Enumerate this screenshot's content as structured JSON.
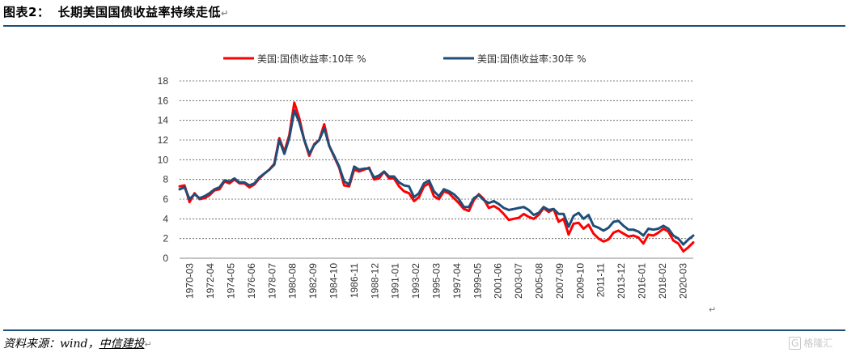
{
  "header": {
    "fig_label": "图表2：",
    "title": "长期美国国债收益率持续走低"
  },
  "footer": {
    "source_prefix": "资料来源：wind，",
    "source_org": "中信建投"
  },
  "watermark": {
    "icon_glyph": "G",
    "text": "格隆汇"
  },
  "return_glyph": "↵",
  "chart_data": {
    "type": "line",
    "title": "",
    "xlabel": "",
    "ylabel": "",
    "ylim": [
      0,
      18
    ],
    "yticks": [
      0,
      2,
      4,
      6,
      8,
      10,
      12,
      14,
      16,
      18
    ],
    "grid": true,
    "grid_style": "dashed-horizontal",
    "legend_position": "top-center",
    "x_tick_labels": [
      "1970-03",
      "1972-04",
      "1974-05",
      "1976-06",
      "1978-07",
      "1980-08",
      "1982-09",
      "1984-10",
      "1986-11",
      "1988-12",
      "1991-01",
      "1993-02",
      "1995-03",
      "1997-04",
      "1999-05",
      "2001-06",
      "2003-07",
      "2005-08",
      "2007-09",
      "2009-10",
      "2011-11",
      "2013-12",
      "2016-01",
      "2018-02",
      "2020-03"
    ],
    "x": [
      1970.0,
      1970.5,
      1971.0,
      1971.5,
      1972.0,
      1972.5,
      1973.0,
      1973.5,
      1974.0,
      1974.5,
      1975.0,
      1975.5,
      1976.0,
      1976.5,
      1977.0,
      1977.5,
      1978.0,
      1978.5,
      1979.0,
      1979.5,
      1980.0,
      1980.5,
      1981.0,
      1981.5,
      1982.0,
      1982.5,
      1983.0,
      1983.5,
      1984.0,
      1984.5,
      1985.0,
      1985.5,
      1986.0,
      1986.5,
      1987.0,
      1987.5,
      1988.0,
      1988.5,
      1989.0,
      1989.5,
      1990.0,
      1990.5,
      1991.0,
      1991.5,
      1992.0,
      1992.5,
      1993.0,
      1993.5,
      1994.0,
      1994.5,
      1995.0,
      1995.5,
      1996.0,
      1996.5,
      1997.0,
      1997.5,
      1998.0,
      1998.5,
      1999.0,
      1999.5,
      2000.0,
      2000.5,
      2001.0,
      2001.5,
      2002.0,
      2002.5,
      2003.0,
      2003.5,
      2004.0,
      2004.5,
      2005.0,
      2005.5,
      2006.0,
      2006.5,
      2007.0,
      2007.5,
      2008.0,
      2008.5,
      2009.0,
      2009.5,
      2010.0,
      2010.5,
      2011.0,
      2011.5,
      2012.0,
      2012.5,
      2013.0,
      2013.5,
      2014.0,
      2014.5,
      2015.0,
      2015.5,
      2016.0,
      2016.5,
      2017.0,
      2017.5,
      2018.0,
      2018.5,
      2019.0,
      2019.5,
      2020.0,
      2020.5,
      2021.0,
      2021.5
    ],
    "series": [
      {
        "name": "美国:国债收益率:10年 %",
        "color": "#ff0000",
        "values": [
          7.3,
          7.4,
          5.7,
          6.6,
          6.0,
          6.1,
          6.4,
          6.9,
          7.0,
          7.8,
          7.6,
          8.0,
          7.6,
          7.6,
          7.2,
          7.5,
          8.1,
          8.6,
          9.0,
          9.6,
          12.2,
          10.8,
          12.5,
          15.8,
          14.2,
          12.0,
          10.4,
          11.6,
          12.0,
          13.6,
          11.4,
          10.3,
          9.2,
          7.4,
          7.3,
          9.0,
          8.8,
          9.0,
          9.2,
          8.0,
          8.1,
          8.8,
          8.1,
          8.1,
          7.3,
          6.8,
          6.6,
          5.8,
          6.2,
          7.3,
          7.6,
          6.3,
          6.0,
          6.8,
          6.6,
          6.1,
          5.6,
          5.0,
          4.8,
          5.9,
          6.5,
          6.0,
          5.1,
          5.3,
          5.0,
          4.5,
          3.9,
          4.0,
          4.1,
          4.5,
          4.2,
          4.0,
          4.4,
          5.1,
          4.7,
          5.0,
          3.7,
          4.0,
          2.4,
          3.5,
          3.6,
          3.0,
          3.4,
          2.5,
          2.0,
          1.7,
          1.9,
          2.6,
          2.8,
          2.5,
          2.2,
          2.3,
          2.1,
          1.5,
          2.4,
          2.3,
          2.6,
          3.0,
          2.7,
          1.8,
          1.5,
          0.7,
          1.1,
          1.6
        ]
      },
      {
        "name": "美国:国债收益率:30年 %",
        "color": "#1f4e79",
        "values": [
          7.0,
          7.2,
          6.0,
          6.5,
          6.1,
          6.3,
          6.6,
          7.0,
          7.2,
          7.9,
          7.8,
          8.1,
          7.7,
          7.7,
          7.4,
          7.6,
          8.2,
          8.6,
          9.0,
          9.5,
          12.0,
          10.6,
          12.2,
          15.0,
          13.8,
          12.0,
          10.6,
          11.5,
          12.0,
          13.2,
          11.4,
          10.4,
          9.3,
          7.8,
          7.5,
          9.3,
          9.0,
          9.1,
          9.1,
          8.2,
          8.4,
          8.8,
          8.3,
          8.3,
          7.7,
          7.4,
          7.3,
          6.2,
          6.6,
          7.6,
          7.9,
          6.8,
          6.3,
          7.0,
          6.8,
          6.5,
          6.0,
          5.2,
          5.2,
          6.1,
          6.4,
          5.9,
          5.6,
          5.8,
          5.5,
          5.1,
          4.9,
          5.0,
          5.1,
          5.2,
          4.9,
          4.4,
          4.6,
          5.2,
          4.9,
          5.0,
          4.5,
          4.5,
          3.2,
          4.3,
          4.6,
          4.0,
          4.4,
          3.3,
          3.1,
          2.8,
          3.1,
          3.7,
          3.8,
          3.3,
          2.9,
          2.9,
          2.7,
          2.3,
          3.0,
          2.9,
          3.0,
          3.3,
          3.0,
          2.3,
          2.0,
          1.4,
          1.9,
          2.3
        ]
      }
    ]
  }
}
